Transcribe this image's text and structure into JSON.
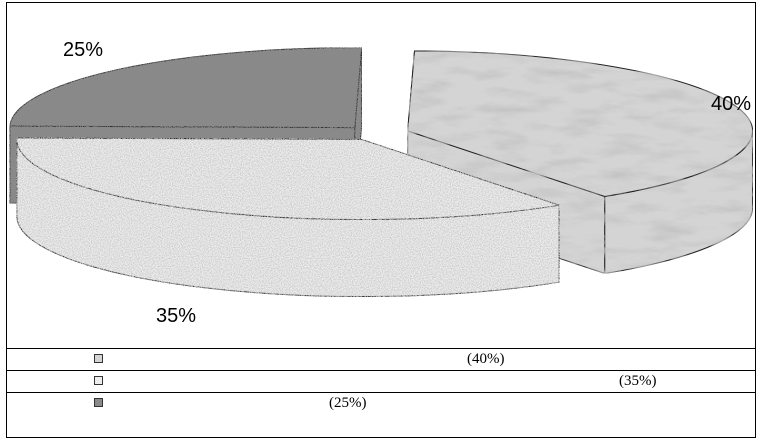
{
  "chart_data": {
    "type": "pie",
    "title": "",
    "slices": [
      {
        "label": "40%",
        "value": 40,
        "legend": "(40%)",
        "color": "#d4d4d4",
        "texture": "marble"
      },
      {
        "label": "35%",
        "value": 35,
        "legend": "(35%)",
        "color": "#ededed",
        "texture": "speckle-light"
      },
      {
        "label": "25%",
        "value": 25,
        "legend": "(25%)",
        "color": "#8a8a8a",
        "texture": "granite-dark"
      }
    ],
    "legend_position": "bottom",
    "exploded": true,
    "three_d": true
  }
}
